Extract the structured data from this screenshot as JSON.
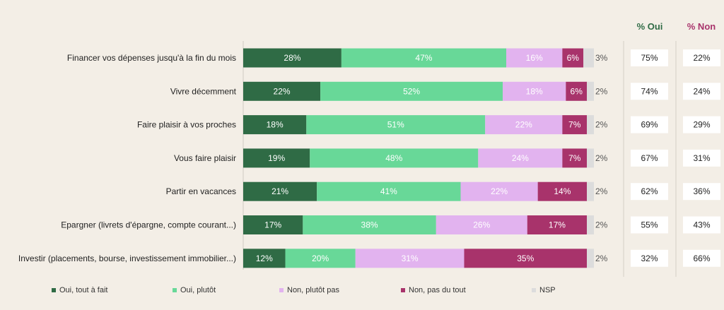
{
  "headers": {
    "oui": "% Oui",
    "non": "% Non"
  },
  "chart_data": {
    "type": "bar",
    "orientation": "horizontal-stacked",
    "categories": [
      "Financer vos dépenses jusqu'à la fin du mois",
      "Vivre décemment",
      "Faire plaisir à vos proches",
      "Vous faire plaisir",
      "Partir en vacances",
      "Epargner (livrets d'épargne, compte courant...)",
      "Investir (placements, bourse, investissement immobilier...)"
    ],
    "series": [
      {
        "name": "Oui, tout à fait",
        "color": "#2f6b45",
        "text_color": "#ffffff",
        "values": [
          28,
          22,
          18,
          19,
          21,
          17,
          12
        ]
      },
      {
        "name": "Oui, plutôt",
        "color": "#68d898",
        "text_color": "#ffffff",
        "values": [
          47,
          52,
          51,
          48,
          41,
          38,
          20
        ]
      },
      {
        "name": "Non, plutôt pas",
        "color": "#e2b3ef",
        "text_color": "#ffffff",
        "values": [
          16,
          18,
          22,
          24,
          22,
          26,
          31
        ]
      },
      {
        "name": "Non, pas du tout",
        "color": "#a8336b",
        "text_color": "#ffffff",
        "values": [
          6,
          6,
          7,
          7,
          14,
          17,
          35
        ]
      },
      {
        "name": "NSP",
        "color": "#dcdcdc",
        "text_color": "#555555",
        "values": [
          3,
          2,
          2,
          2,
          2,
          2,
          2
        ]
      }
    ],
    "totals_oui": [
      "75%",
      "74%",
      "69%",
      "67%",
      "62%",
      "55%",
      "32%"
    ],
    "totals_non": [
      "22%",
      "24%",
      "29%",
      "31%",
      "36%",
      "43%",
      "66%"
    ],
    "unit": "%",
    "xlim": [
      0,
      100
    ],
    "legend_position": "bottom"
  }
}
